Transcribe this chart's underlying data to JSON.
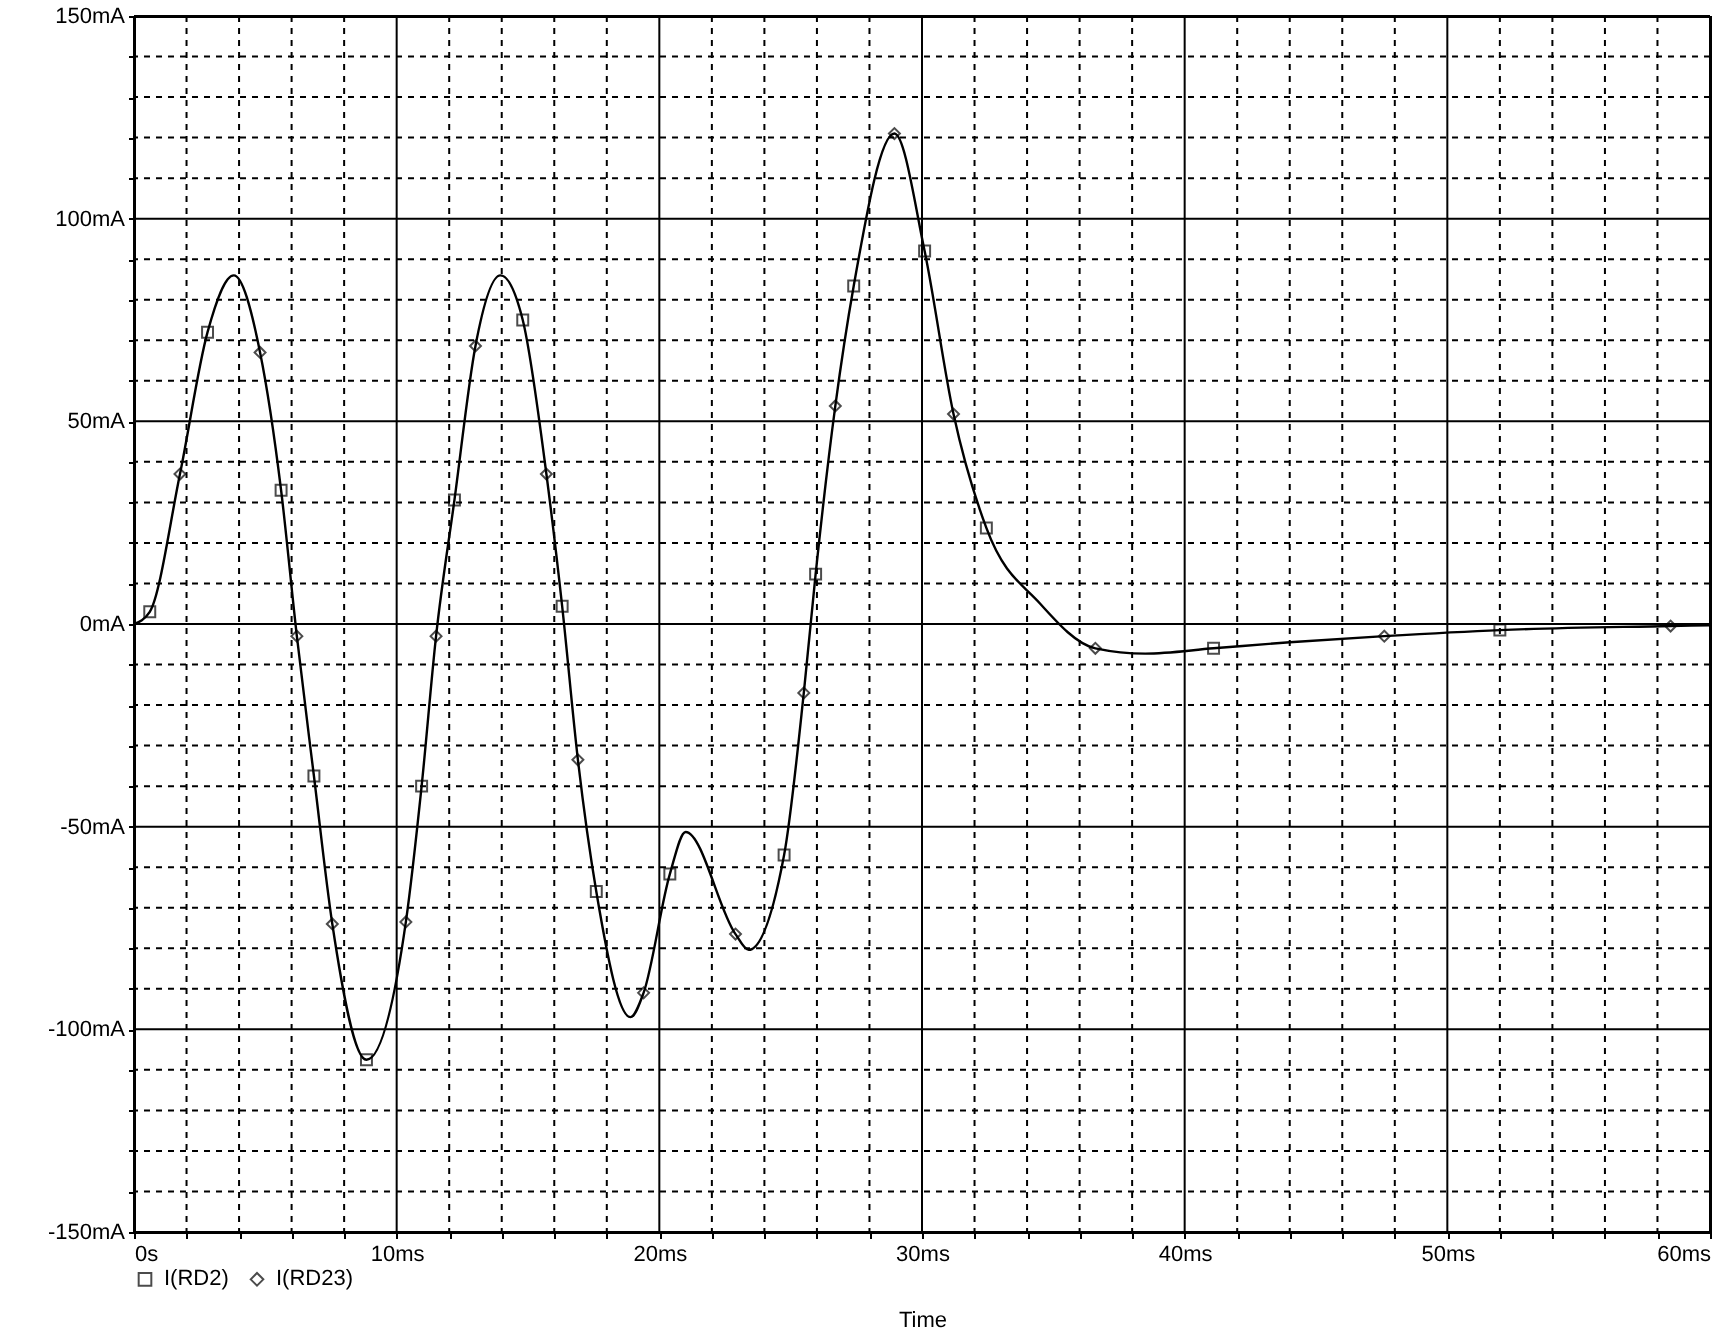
{
  "chart_data": {
    "type": "line",
    "xlabel": "Time",
    "xlim": [
      0,
      60
    ],
    "ylim": [
      -150,
      150
    ],
    "xticks": [
      {
        "value": 0,
        "label": "0s"
      },
      {
        "value": 2,
        "label": null
      },
      {
        "value": 4,
        "label": null
      },
      {
        "value": 6,
        "label": null
      },
      {
        "value": 8,
        "label": null
      },
      {
        "value": 10,
        "label": "10ms"
      },
      {
        "value": 12,
        "label": null
      },
      {
        "value": 14,
        "label": null
      },
      {
        "value": 16,
        "label": null
      },
      {
        "value": 18,
        "label": null
      },
      {
        "value": 20,
        "label": "20ms"
      },
      {
        "value": 22,
        "label": null
      },
      {
        "value": 24,
        "label": null
      },
      {
        "value": 26,
        "label": null
      },
      {
        "value": 28,
        "label": null
      },
      {
        "value": 30,
        "label": "30ms"
      },
      {
        "value": 32,
        "label": null
      },
      {
        "value": 34,
        "label": null
      },
      {
        "value": 36,
        "label": null
      },
      {
        "value": 38,
        "label": null
      },
      {
        "value": 40,
        "label": "40ms"
      },
      {
        "value": 42,
        "label": null
      },
      {
        "value": 44,
        "label": null
      },
      {
        "value": 46,
        "label": null
      },
      {
        "value": 48,
        "label": null
      },
      {
        "value": 50,
        "label": "50ms"
      },
      {
        "value": 52,
        "label": null
      },
      {
        "value": 54,
        "label": null
      },
      {
        "value": 56,
        "label": null
      },
      {
        "value": 58,
        "label": null
      },
      {
        "value": 60,
        "label": "60ms"
      }
    ],
    "yticks": [
      {
        "value": -150,
        "label": "-150mA"
      },
      {
        "value": -140,
        "label": null
      },
      {
        "value": -130,
        "label": null
      },
      {
        "value": -120,
        "label": null
      },
      {
        "value": -110,
        "label": null
      },
      {
        "value": -100,
        "label": "-100mA"
      },
      {
        "value": -90,
        "label": null
      },
      {
        "value": -80,
        "label": null
      },
      {
        "value": -70,
        "label": null
      },
      {
        "value": -60,
        "label": null
      },
      {
        "value": -50,
        "label": "-50mA"
      },
      {
        "value": -40,
        "label": null
      },
      {
        "value": -30,
        "label": null
      },
      {
        "value": -20,
        "label": null
      },
      {
        "value": -10,
        "label": null
      },
      {
        "value": 0,
        "label": "0mA"
      },
      {
        "value": 10,
        "label": null
      },
      {
        "value": 20,
        "label": null
      },
      {
        "value": 30,
        "label": null
      },
      {
        "value": 40,
        "label": null
      },
      {
        "value": 50,
        "label": "50mA"
      },
      {
        "value": 60,
        "label": null
      },
      {
        "value": 70,
        "label": null
      },
      {
        "value": 80,
        "label": null
      },
      {
        "value": 90,
        "label": null
      },
      {
        "value": 100,
        "label": "100mA"
      },
      {
        "value": 110,
        "label": null
      },
      {
        "value": 120,
        "label": null
      },
      {
        "value": 130,
        "label": null
      },
      {
        "value": 140,
        "label": null
      },
      {
        "value": 150,
        "label": "150mA"
      }
    ],
    "grid": true,
    "legend": "bottom left",
    "series": [
      {
        "color": "#000000",
        "marker": "none",
        "x": [
          0,
          0.6,
          1.75,
          2.8,
          3.8,
          4.8,
          5.6,
          6.2,
          6.85,
          7.55,
          8.85,
          10.35,
          10.95,
          11.5,
          12.2,
          13.0,
          13.95,
          14.8,
          15.7,
          16.3,
          16.9,
          17.6,
          18.9,
          19.4,
          20.4,
          21.0,
          22.9,
          23.4,
          24.75,
          25.5,
          25.95,
          26.7,
          27.4,
          28.95,
          30.1,
          31.2,
          32.45,
          34.5,
          36.6,
          38.5,
          41.1,
          44,
          47.6,
          52.0,
          58.5,
          60
        ],
        "values": [
          0,
          3,
          37,
          72,
          86,
          67,
          33,
          -3,
          -37.5,
          -74,
          -107.5,
          -73.5,
          -40,
          -3,
          30.6,
          68.6,
          86,
          75,
          37,
          4.4,
          -33.5,
          -66,
          -97,
          -91,
          -61.7,
          -51.3,
          -76.5,
          -80.4,
          -57,
          -17,
          12.3,
          53.8,
          83.4,
          121,
          92,
          51.8,
          23.7,
          5,
          -6,
          -7.3,
          -6,
          -4.5,
          -3,
          -1.5,
          -0.5,
          -0.3
        ]
      },
      {
        "type": "scatter",
        "name": "I(RD2)",
        "color": "#000000",
        "marker": "square",
        "x": [
          0.6,
          2.8,
          5.6,
          6.85,
          8.85,
          10.95,
          12.2,
          14.8,
          16.3,
          17.6,
          20.4,
          24.75,
          25.95,
          27.4,
          30.1,
          32.45,
          41.1,
          52.0
        ],
        "values": [
          3,
          72,
          33,
          -37.5,
          -107.5,
          -40,
          30.6,
          75,
          4.4,
          -66,
          -61.7,
          -57,
          12.3,
          83.4,
          92,
          23.7,
          -6,
          -1.5
        ]
      },
      {
        "type": "scatter",
        "name": "I(RD23)",
        "color": "#000000",
        "marker": "diamond",
        "x": [
          1.75,
          4.8,
          6.2,
          7.55,
          10.35,
          11.5,
          13.0,
          15.7,
          16.9,
          19.4,
          22.9,
          25.5,
          26.7,
          28.95,
          31.2,
          36.6,
          47.6,
          58.5
        ],
        "values": [
          37,
          67,
          -3,
          -74,
          -73.5,
          -3,
          68.6,
          37,
          -33.5,
          -91,
          -76.5,
          -17,
          53.8,
          121,
          51.8,
          -6,
          -3,
          -0.5
        ]
      }
    ]
  }
}
